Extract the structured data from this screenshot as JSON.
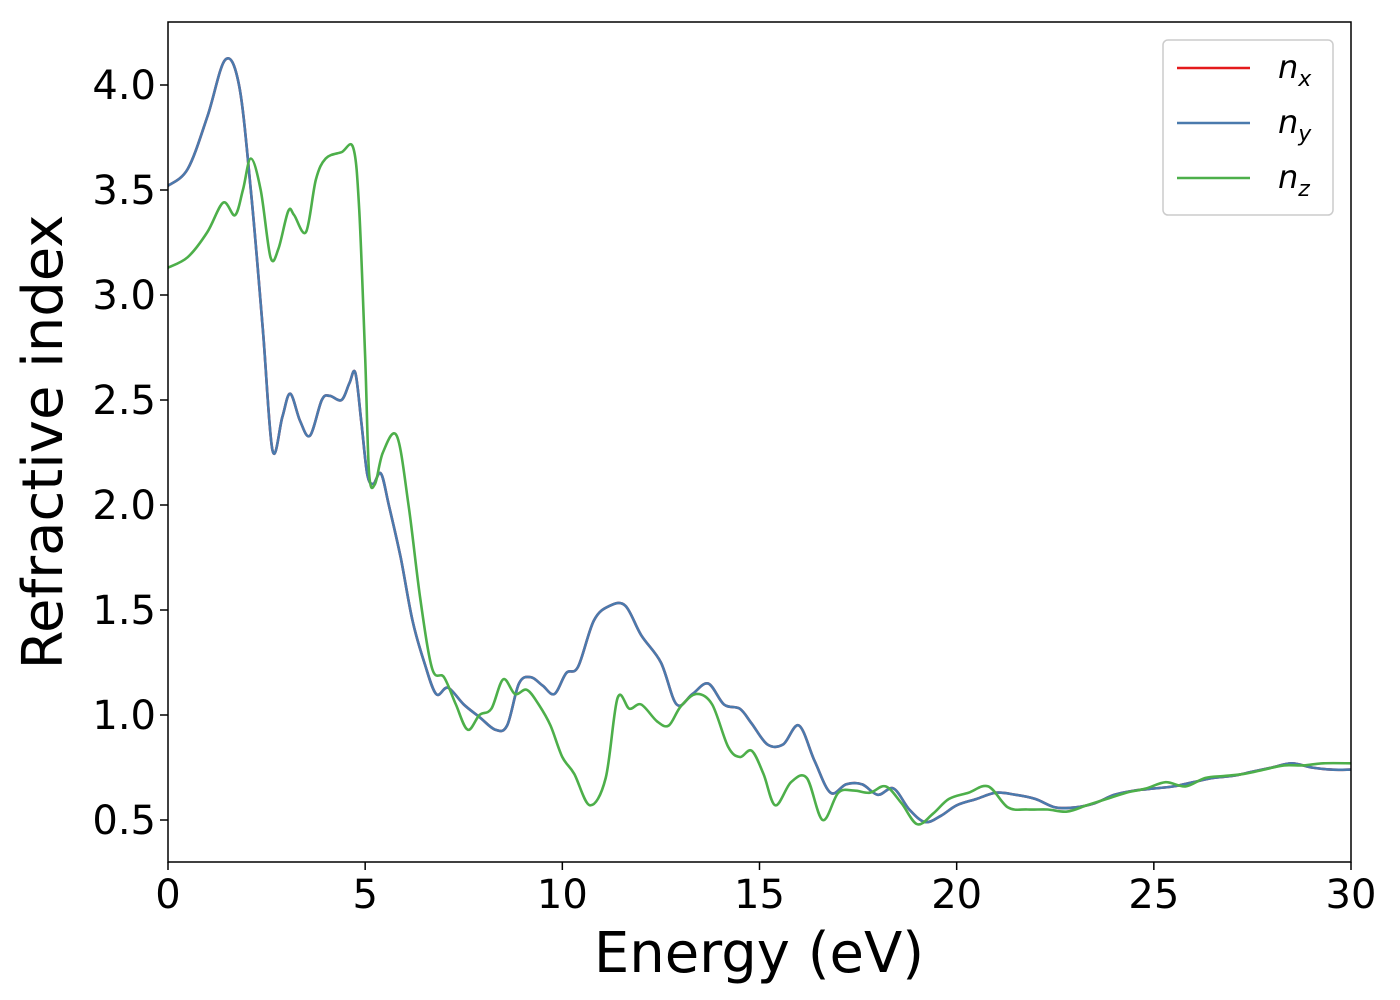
{
  "chart_data": {
    "type": "line",
    "xlabel": "Energy (eV)",
    "ylabel": "Refractive index",
    "xlim": [
      0,
      30
    ],
    "ylim": [
      0.3,
      4.3
    ],
    "xticks": [
      0,
      5,
      10,
      15,
      20,
      25,
      30
    ],
    "xtick_labels": [
      "0",
      "5",
      "10",
      "15",
      "20",
      "25",
      "30"
    ],
    "yticks": [
      0.5,
      1.0,
      1.5,
      2.0,
      2.5,
      3.0,
      3.5,
      4.0
    ],
    "ytick_labels": [
      "0.5",
      "1.0",
      "1.5",
      "2.0",
      "2.5",
      "3.0",
      "3.5",
      "4.0"
    ],
    "grid": false,
    "legend": "top-right",
    "series": [
      {
        "name": "n_x",
        "legend_base": "n",
        "legend_sub": "x",
        "color": "#e41a1c",
        "x": [
          0,
          0.5,
          1.0,
          1.45,
          1.8,
          2.1,
          2.4,
          2.65,
          2.9,
          3.1,
          3.35,
          3.6,
          3.9,
          4.1,
          4.4,
          4.6,
          4.75,
          4.9,
          5.05,
          5.2,
          5.4,
          5.6,
          5.9,
          6.2,
          6.5,
          6.8,
          7.1,
          7.5,
          7.9,
          8.3,
          8.6,
          8.9,
          9.2,
          9.5,
          9.8,
          10.1,
          10.4,
          10.8,
          11.2,
          11.6,
          12.0,
          12.5,
          12.9,
          13.3,
          13.7,
          14.1,
          14.5,
          14.8,
          15.2,
          15.6,
          16.0,
          16.4,
          16.8,
          17.2,
          17.6,
          18.0,
          18.4,
          18.8,
          19.2,
          19.6,
          20.0,
          20.5,
          21.0,
          21.5,
          22.0,
          22.5,
          23.0,
          23.5,
          24.0,
          24.5,
          25.0,
          25.5,
          26.0,
          26.5,
          27.0,
          27.5,
          28.0,
          28.5,
          29.0,
          29.5,
          30.0
        ],
        "values": [
          3.52,
          3.6,
          3.85,
          4.12,
          4.0,
          3.5,
          2.85,
          2.26,
          2.42,
          2.53,
          2.4,
          2.33,
          2.5,
          2.52,
          2.5,
          2.58,
          2.63,
          2.4,
          2.15,
          2.1,
          2.15,
          2.0,
          1.75,
          1.45,
          1.25,
          1.1,
          1.13,
          1.05,
          0.99,
          0.93,
          0.95,
          1.15,
          1.18,
          1.14,
          1.1,
          1.2,
          1.23,
          1.45,
          1.52,
          1.52,
          1.38,
          1.25,
          1.05,
          1.1,
          1.15,
          1.05,
          1.03,
          0.96,
          0.86,
          0.86,
          0.95,
          0.78,
          0.63,
          0.67,
          0.67,
          0.62,
          0.65,
          0.55,
          0.49,
          0.52,
          0.57,
          0.6,
          0.63,
          0.62,
          0.6,
          0.56,
          0.56,
          0.58,
          0.62,
          0.64,
          0.65,
          0.66,
          0.68,
          0.7,
          0.71,
          0.73,
          0.75,
          0.77,
          0.75,
          0.74,
          0.74
        ]
      },
      {
        "name": "n_y",
        "legend_base": "n",
        "legend_sub": "y",
        "color": "#4a7aad",
        "x": [
          0,
          0.5,
          1.0,
          1.45,
          1.8,
          2.1,
          2.4,
          2.65,
          2.9,
          3.1,
          3.35,
          3.6,
          3.9,
          4.1,
          4.4,
          4.6,
          4.75,
          4.9,
          5.05,
          5.2,
          5.4,
          5.6,
          5.9,
          6.2,
          6.5,
          6.8,
          7.1,
          7.5,
          7.9,
          8.3,
          8.6,
          8.9,
          9.2,
          9.5,
          9.8,
          10.1,
          10.4,
          10.8,
          11.2,
          11.6,
          12.0,
          12.5,
          12.9,
          13.3,
          13.7,
          14.1,
          14.5,
          14.8,
          15.2,
          15.6,
          16.0,
          16.4,
          16.8,
          17.2,
          17.6,
          18.0,
          18.4,
          18.8,
          19.2,
          19.6,
          20.0,
          20.5,
          21.0,
          21.5,
          22.0,
          22.5,
          23.0,
          23.5,
          24.0,
          24.5,
          25.0,
          25.5,
          26.0,
          26.5,
          27.0,
          27.5,
          28.0,
          28.5,
          29.0,
          29.5,
          30.0
        ],
        "values": [
          3.52,
          3.6,
          3.85,
          4.12,
          4.0,
          3.5,
          2.85,
          2.26,
          2.42,
          2.53,
          2.4,
          2.33,
          2.5,
          2.52,
          2.5,
          2.58,
          2.63,
          2.4,
          2.15,
          2.1,
          2.15,
          2.0,
          1.75,
          1.45,
          1.25,
          1.1,
          1.13,
          1.05,
          0.99,
          0.93,
          0.95,
          1.15,
          1.18,
          1.14,
          1.1,
          1.2,
          1.23,
          1.45,
          1.52,
          1.52,
          1.38,
          1.25,
          1.05,
          1.1,
          1.15,
          1.05,
          1.03,
          0.96,
          0.86,
          0.86,
          0.95,
          0.78,
          0.63,
          0.67,
          0.67,
          0.62,
          0.65,
          0.55,
          0.49,
          0.52,
          0.57,
          0.6,
          0.63,
          0.62,
          0.6,
          0.56,
          0.56,
          0.58,
          0.62,
          0.64,
          0.65,
          0.66,
          0.68,
          0.7,
          0.71,
          0.73,
          0.75,
          0.77,
          0.75,
          0.74,
          0.74
        ]
      },
      {
        "name": "n_z",
        "legend_base": "n",
        "legend_sub": "z",
        "color": "#4daf4a",
        "x": [
          0,
          0.5,
          1.0,
          1.4,
          1.7,
          1.9,
          2.1,
          2.35,
          2.6,
          2.8,
          3.05,
          3.2,
          3.5,
          3.75,
          4.0,
          4.4,
          4.7,
          4.85,
          5.0,
          5.1,
          5.25,
          5.45,
          5.8,
          6.1,
          6.4,
          6.7,
          7.0,
          7.3,
          7.6,
          7.9,
          8.2,
          8.5,
          8.8,
          9.1,
          9.4,
          9.7,
          10.0,
          10.3,
          10.7,
          11.1,
          11.4,
          11.7,
          12.0,
          12.4,
          12.7,
          13.0,
          13.4,
          13.8,
          14.2,
          14.5,
          14.8,
          15.1,
          15.4,
          15.8,
          16.2,
          16.6,
          17.0,
          17.4,
          17.8,
          18.2,
          18.6,
          19.0,
          19.4,
          19.8,
          20.3,
          20.8,
          21.3,
          21.8,
          22.3,
          22.8,
          23.3,
          23.8,
          24.3,
          24.8,
          25.3,
          25.8,
          26.3,
          26.8,
          27.3,
          27.8,
          28.3,
          28.8,
          29.3,
          30.0
        ],
        "values": [
          3.13,
          3.18,
          3.3,
          3.44,
          3.38,
          3.5,
          3.65,
          3.5,
          3.18,
          3.22,
          3.4,
          3.38,
          3.3,
          3.55,
          3.65,
          3.68,
          3.7,
          3.4,
          2.7,
          2.15,
          2.1,
          2.25,
          2.33,
          2.0,
          1.55,
          1.22,
          1.18,
          1.05,
          0.93,
          1.0,
          1.03,
          1.17,
          1.1,
          1.12,
          1.05,
          0.95,
          0.8,
          0.72,
          0.57,
          0.7,
          1.08,
          1.03,
          1.05,
          0.97,
          0.95,
          1.04,
          1.1,
          1.05,
          0.85,
          0.8,
          0.83,
          0.72,
          0.57,
          0.68,
          0.7,
          0.5,
          0.63,
          0.64,
          0.63,
          0.66,
          0.58,
          0.48,
          0.53,
          0.6,
          0.63,
          0.66,
          0.56,
          0.55,
          0.55,
          0.54,
          0.57,
          0.6,
          0.63,
          0.65,
          0.68,
          0.66,
          0.7,
          0.71,
          0.72,
          0.74,
          0.76,
          0.76,
          0.77,
          0.77
        ]
      }
    ]
  }
}
